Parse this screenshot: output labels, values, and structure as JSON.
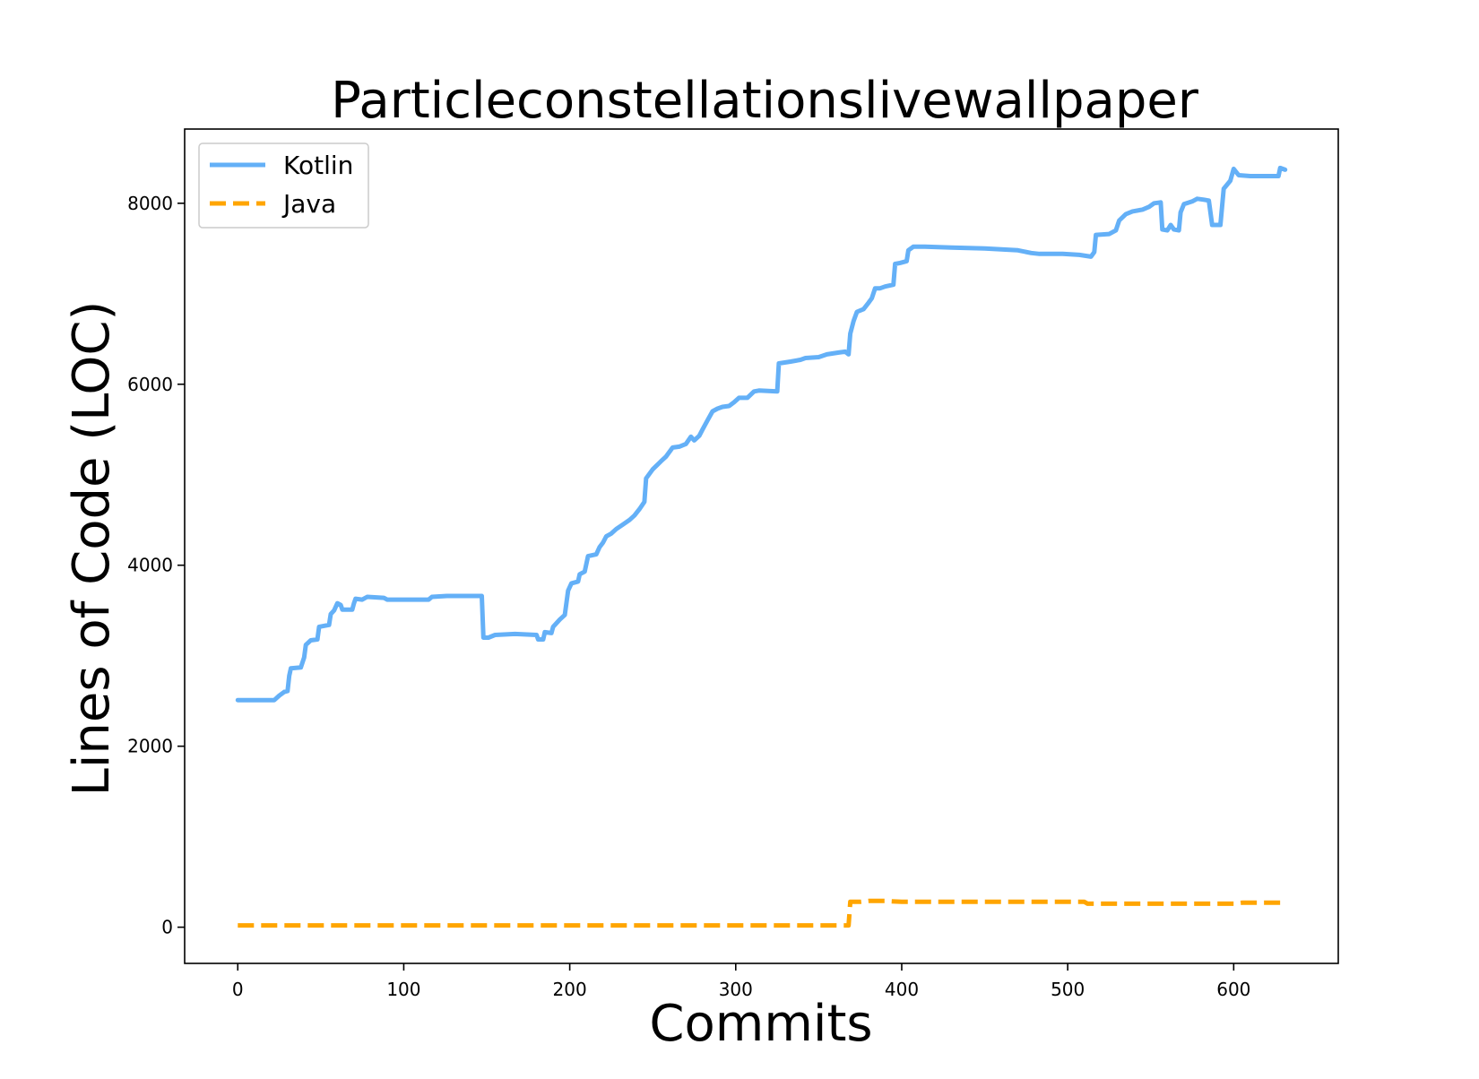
{
  "chart_data": {
    "type": "line",
    "title": "Particleconstellationslivewallpaper",
    "xlabel": "Commits",
    "ylabel": "Lines of Code (LOC)",
    "xlim": [
      -32,
      663
    ],
    "ylim": [
      -400,
      8820
    ],
    "xticks": [
      0,
      100,
      200,
      300,
      400,
      500,
      600
    ],
    "yticks": [
      0,
      2000,
      4000,
      6000,
      8000
    ],
    "grid": false,
    "legend_position": "upper-left",
    "series": [
      {
        "name": "Kotlin",
        "color": "#64b0f7",
        "dash": "solid",
        "points": [
          [
            0,
            2510
          ],
          [
            22,
            2510
          ],
          [
            25,
            2560
          ],
          [
            28,
            2600
          ],
          [
            30,
            2610
          ],
          [
            31,
            2780
          ],
          [
            32,
            2860
          ],
          [
            38,
            2870
          ],
          [
            40,
            2980
          ],
          [
            41,
            3120
          ],
          [
            44,
            3170
          ],
          [
            48,
            3180
          ],
          [
            49,
            3320
          ],
          [
            55,
            3340
          ],
          [
            56,
            3460
          ],
          [
            58,
            3500
          ],
          [
            60,
            3580
          ],
          [
            62,
            3560
          ],
          [
            63,
            3510
          ],
          [
            69,
            3510
          ],
          [
            70,
            3580
          ],
          [
            71,
            3630
          ],
          [
            75,
            3620
          ],
          [
            78,
            3650
          ],
          [
            88,
            3640
          ],
          [
            90,
            3620
          ],
          [
            115,
            3620
          ],
          [
            117,
            3650
          ],
          [
            126,
            3660
          ],
          [
            147,
            3660
          ],
          [
            148,
            3200
          ],
          [
            151,
            3200
          ],
          [
            155,
            3230
          ],
          [
            167,
            3240
          ],
          [
            180,
            3230
          ],
          [
            181,
            3180
          ],
          [
            184,
            3180
          ],
          [
            185,
            3260
          ],
          [
            189,
            3250
          ],
          [
            190,
            3320
          ],
          [
            194,
            3400
          ],
          [
            197,
            3450
          ],
          [
            199,
            3720
          ],
          [
            201,
            3800
          ],
          [
            205,
            3820
          ],
          [
            206,
            3900
          ],
          [
            209,
            3930
          ],
          [
            211,
            4100
          ],
          [
            216,
            4120
          ],
          [
            218,
            4200
          ],
          [
            220,
            4250
          ],
          [
            222,
            4320
          ],
          [
            225,
            4350
          ],
          [
            228,
            4400
          ],
          [
            232,
            4450
          ],
          [
            236,
            4500
          ],
          [
            239,
            4550
          ],
          [
            242,
            4620
          ],
          [
            245,
            4700
          ],
          [
            246,
            4960
          ],
          [
            250,
            5060
          ],
          [
            255,
            5150
          ],
          [
            258,
            5200
          ],
          [
            262,
            5300
          ],
          [
            266,
            5310
          ],
          [
            270,
            5340
          ],
          [
            273,
            5420
          ],
          [
            275,
            5380
          ],
          [
            278,
            5430
          ],
          [
            280,
            5500
          ],
          [
            283,
            5600
          ],
          [
            286,
            5700
          ],
          [
            289,
            5730
          ],
          [
            292,
            5750
          ],
          [
            296,
            5760
          ],
          [
            299,
            5800
          ],
          [
            302,
            5850
          ],
          [
            307,
            5850
          ],
          [
            311,
            5920
          ],
          [
            314,
            5930
          ],
          [
            325,
            5920
          ],
          [
            326,
            6230
          ],
          [
            333,
            6250
          ],
          [
            339,
            6270
          ],
          [
            342,
            6290
          ],
          [
            350,
            6300
          ],
          [
            355,
            6330
          ],
          [
            362,
            6350
          ],
          [
            366,
            6360
          ],
          [
            368,
            6330
          ],
          [
            369,
            6560
          ],
          [
            371,
            6700
          ],
          [
            373,
            6800
          ],
          [
            377,
            6830
          ],
          [
            380,
            6900
          ],
          [
            382,
            6950
          ],
          [
            384,
            7060
          ],
          [
            387,
            7060
          ],
          [
            390,
            7080
          ],
          [
            395,
            7100
          ],
          [
            396,
            7330
          ],
          [
            399,
            7340
          ],
          [
            403,
            7360
          ],
          [
            404,
            7480
          ],
          [
            407,
            7520
          ],
          [
            414,
            7520
          ],
          [
            430,
            7510
          ],
          [
            450,
            7500
          ],
          [
            470,
            7480
          ],
          [
            478,
            7450
          ],
          [
            483,
            7440
          ],
          [
            497,
            7440
          ],
          [
            507,
            7430
          ],
          [
            514,
            7410
          ],
          [
            516,
            7460
          ],
          [
            517,
            7650
          ],
          [
            525,
            7660
          ],
          [
            529,
            7700
          ],
          [
            531,
            7810
          ],
          [
            535,
            7880
          ],
          [
            539,
            7910
          ],
          [
            545,
            7930
          ],
          [
            549,
            7960
          ],
          [
            552,
            8000
          ],
          [
            556,
            8010
          ],
          [
            557,
            7710
          ],
          [
            560,
            7700
          ],
          [
            562,
            7760
          ],
          [
            564,
            7710
          ],
          [
            567,
            7700
          ],
          [
            568,
            7900
          ],
          [
            570,
            7990
          ],
          [
            575,
            8020
          ],
          [
            578,
            8050
          ],
          [
            582,
            8040
          ],
          [
            585,
            8030
          ],
          [
            587,
            7760
          ],
          [
            592,
            7760
          ],
          [
            594,
            8160
          ],
          [
            598,
            8250
          ],
          [
            600,
            8380
          ],
          [
            603,
            8310
          ],
          [
            610,
            8300
          ],
          [
            620,
            8300
          ],
          [
            627,
            8300
          ],
          [
            628,
            8390
          ],
          [
            631,
            8370
          ]
        ]
      },
      {
        "name": "Java",
        "color": "#ffa500",
        "dash": "dashed",
        "points": [
          [
            0,
            20
          ],
          [
            366,
            20
          ],
          [
            368,
            20
          ],
          [
            369,
            280
          ],
          [
            375,
            280
          ],
          [
            380,
            290
          ],
          [
            390,
            290
          ],
          [
            400,
            280
          ],
          [
            450,
            280
          ],
          [
            510,
            280
          ],
          [
            512,
            260
          ],
          [
            520,
            260
          ],
          [
            600,
            260
          ],
          [
            605,
            270
          ],
          [
            630,
            270
          ]
        ]
      }
    ]
  }
}
